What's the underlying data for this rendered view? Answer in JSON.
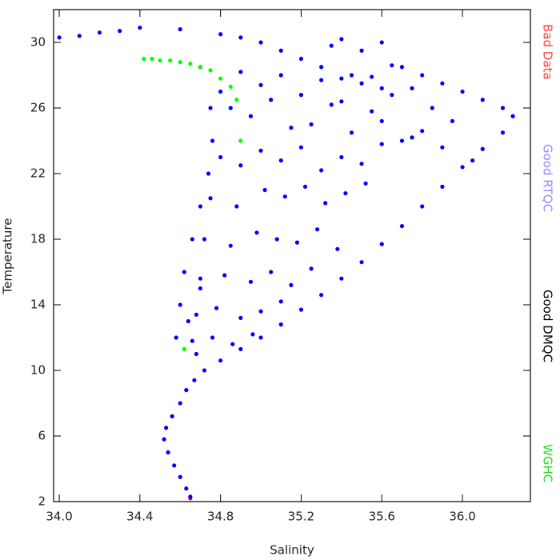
{
  "chart_data": {
    "type": "scatter",
    "x_label": "Salinity",
    "y_label": "Temperature",
    "xlim": [
      33.972,
      36.337
    ],
    "ylim": [
      2,
      32
    ],
    "xticks": [
      {
        "value": 34,
        "label": "34.0"
      },
      34.4,
      34.8,
      35.2,
      35.6,
      {
        "value": 36,
        "label": "36.0"
      }
    ],
    "yticks": [
      2,
      6,
      10,
      14,
      18,
      22,
      26,
      30
    ],
    "series": [
      {
        "name": "Bad Data",
        "color": "#ff0000",
        "label_color": "#ff4040",
        "x": [
          34.65
        ],
        "values": [
          2.2
        ]
      },
      {
        "name": "Good RTQC",
        "color": "#0000ff",
        "label_color": "#8c8cff",
        "x": [
          34.65,
          34.63,
          34.6,
          34.57,
          34.54,
          34.52,
          34.53,
          34.56,
          34.6,
          34.63,
          34.67,
          34.72,
          34.8,
          34.9,
          35.0,
          35.1,
          35.2,
          35.3,
          35.4,
          35.5,
          35.6,
          35.7,
          35.8,
          35.9,
          36.0,
          36.1,
          36.2,
          36.25,
          36.1,
          36.0,
          35.9,
          35.8,
          35.7,
          35.5,
          35.45,
          35.4,
          35.6,
          35.3,
          35.2,
          35.1,
          35.0,
          34.9,
          34.8,
          34.6,
          34.4,
          34.2,
          34.0,
          34.1,
          34.3,
          35.5,
          35.6,
          35.4,
          34.7,
          34.9,
          35.1,
          35.3,
          36.2,
          35.55,
          35.35,
          35.65,
          34.6,
          34.62,
          34.66,
          34.7,
          34.74,
          34.76,
          34.75,
          34.8,
          34.58,
          34.64,
          34.68,
          34.7,
          34.85,
          34.95,
          35.05,
          35.15,
          35.25,
          35.35,
          35.45,
          35.55,
          35.65,
          35.75,
          35.85,
          35.95,
          34.8,
          34.9,
          35.0,
          35.1,
          35.2,
          35.3,
          35.4,
          35.5,
          35.6,
          35.7,
          34.75,
          34.88,
          35.02,
          35.12,
          35.22,
          35.32,
          35.42,
          35.52,
          34.72,
          34.85,
          34.98,
          35.08,
          35.18,
          35.28,
          35.38,
          34.7,
          34.82,
          34.95,
          35.05,
          35.15,
          35.25,
          34.68,
          34.78,
          34.9,
          35.0,
          35.1,
          34.66,
          34.76,
          34.86,
          34.96,
          35.0,
          35.2,
          35.4,
          35.6,
          35.8,
          36.05,
          35.9,
          35.75
        ],
        "values": [
          2.3,
          2.8,
          3.5,
          4.2,
          5,
          5.8,
          6.5,
          7.2,
          8,
          8.8,
          9.4,
          10,
          10.6,
          11.3,
          12,
          12.8,
          13.7,
          14.6,
          15.6,
          16.6,
          17.7,
          18.8,
          20,
          21.2,
          22.4,
          23.5,
          24.5,
          25.5,
          26.5,
          27,
          27.5,
          28,
          28.5,
          27.5,
          28,
          27.8,
          27.2,
          28.5,
          29,
          29.5,
          30,
          30.3,
          30.5,
          30.8,
          30.9,
          30.6,
          30.3,
          30.4,
          30.7,
          29.5,
          30,
          30.2,
          28.5,
          28.2,
          28,
          27.7,
          26,
          27.9,
          29.8,
          28.6,
          14,
          16,
          18,
          20,
          22,
          24,
          26,
          27,
          12,
          13,
          11,
          15,
          26,
          25.5,
          26.5,
          24.8,
          25,
          26.2,
          24.5,
          25.8,
          26.8,
          27.2,
          26,
          25.2,
          23,
          22.5,
          23.4,
          22.8,
          23.6,
          22.2,
          23,
          22.6,
          23.8,
          24,
          20.5,
          20,
          21,
          20.6,
          21.2,
          20.2,
          20.8,
          21.4,
          18,
          17.6,
          18.4,
          18,
          17.8,
          18.6,
          17.4,
          15.6,
          15.8,
          15.4,
          16,
          15.2,
          16.2,
          13.4,
          13.8,
          13.2,
          13.6,
          14.2,
          11.8,
          12,
          11.6,
          12.2,
          27.4,
          26.8,
          26.4,
          25.2,
          24.6,
          22.8,
          23.6,
          24.2
        ]
      },
      {
        "name": "Good DMQC",
        "color": "#000000",
        "label_color": "#000000",
        "x": [],
        "values": []
      },
      {
        "name": "WGHC",
        "color": "#00ff00",
        "label_color": "#22dd22",
        "x": [
          34.42,
          34.46,
          34.5,
          34.55,
          34.6,
          34.65,
          34.7,
          34.75,
          34.8,
          34.85,
          34.88,
          34.9,
          34.62
        ],
        "values": [
          29,
          29,
          28.9,
          28.9,
          28.8,
          28.7,
          28.5,
          28.3,
          27.8,
          27.3,
          26.5,
          24,
          11.3
        ]
      }
    ]
  }
}
